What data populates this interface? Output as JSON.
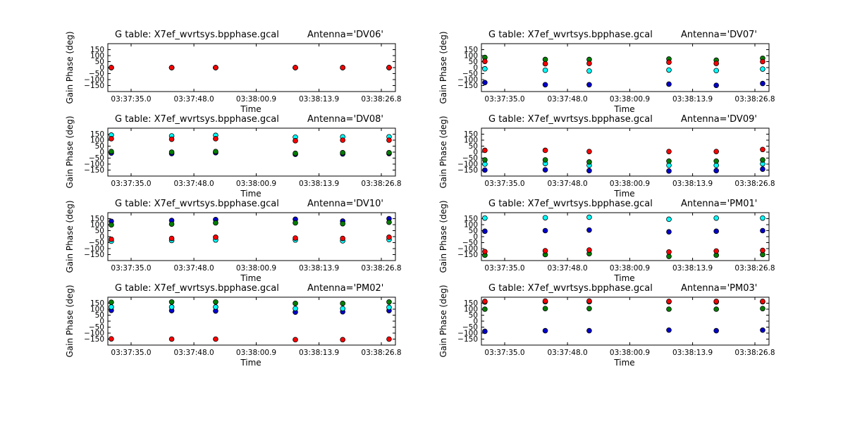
{
  "chart_data": [
    {
      "type": "scatter",
      "title": "G table: X7ef_wvrtsys.bpphase.gcal",
      "antenna": "Antenna='DV06'",
      "xlabel": "Time",
      "ylabel": "Gain Phase (deg)",
      "ylim": [
        -200,
        200
      ],
      "yticks": [
        -150,
        -100,
        -50,
        0,
        50,
        100,
        150
      ],
      "xticks": [
        "03:37:35.0",
        "03:37:48.0",
        "03:38:00.9",
        "03:38:13.9",
        "03:38:26.8"
      ],
      "x": [
        "03:37:30.9",
        "03:37:43.4",
        "03:37:52.5",
        "03:38:09.0",
        "03:38:18.8",
        "03:38:28.4"
      ],
      "series": [
        {
          "color": "#0000cc",
          "values": [
            0,
            0,
            0,
            0,
            0,
            0
          ]
        },
        {
          "color": "#00ffff",
          "values": [
            0,
            0,
            0,
            0,
            0,
            0
          ]
        },
        {
          "color": "#007f00",
          "values": [
            0,
            0,
            0,
            0,
            0,
            0
          ]
        },
        {
          "color": "#ff0000",
          "values": [
            0,
            0,
            0,
            0,
            0,
            0
          ]
        }
      ]
    },
    {
      "type": "scatter",
      "title": "G table: X7ef_wvrtsys.bpphase.gcal",
      "antenna": "Antenna='DV07'",
      "xlabel": "Time",
      "ylabel": "Gain Phase (deg)",
      "ylim": [
        -200,
        200
      ],
      "yticks": [
        -150,
        -100,
        -50,
        0,
        50,
        100,
        150
      ],
      "xticks": [
        "03:37:35.0",
        "03:37:48.0",
        "03:38:00.9",
        "03:38:13.9",
        "03:38:26.8"
      ],
      "x": [
        "03:37:30.9",
        "03:37:43.4",
        "03:37:52.5",
        "03:38:09.0",
        "03:38:18.8",
        "03:38:28.4"
      ],
      "series": [
        {
          "color": "#0000cc",
          "values": [
            -125,
            -143,
            -143,
            -138,
            -148,
            -133
          ]
        },
        {
          "color": "#00ffff",
          "values": [
            -10,
            -22,
            -28,
            -20,
            -25,
            -12
          ]
        },
        {
          "color": "#007f00",
          "values": [
            85,
            68,
            68,
            72,
            62,
            78
          ]
        },
        {
          "color": "#ff0000",
          "values": [
            52,
            32,
            35,
            45,
            35,
            50
          ]
        }
      ]
    },
    {
      "type": "scatter",
      "title": "G table: X7ef_wvrtsys.bpphase.gcal",
      "antenna": "Antenna='DV08'",
      "xlabel": "Time",
      "ylabel": "Gain Phase (deg)",
      "ylim": [
        -200,
        200
      ],
      "yticks": [
        -150,
        -100,
        -50,
        0,
        50,
        100,
        150
      ],
      "xticks": [
        "03:37:35.0",
        "03:37:48.0",
        "03:38:00.9",
        "03:38:13.9",
        "03:38:26.8"
      ],
      "x": [
        "03:37:30.9",
        "03:37:43.4",
        "03:37:52.5",
        "03:38:09.0",
        "03:38:18.8",
        "03:38:28.4"
      ],
      "series": [
        {
          "color": "#0000cc",
          "values": [
            -8,
            -12,
            -5,
            -18,
            -15,
            -12
          ]
        },
        {
          "color": "#00ffff",
          "values": [
            142,
            135,
            140,
            125,
            128,
            128
          ]
        },
        {
          "color": "#007f00",
          "values": [
            5,
            0,
            5,
            -10,
            -5,
            -5
          ]
        },
        {
          "color": "#ff0000",
          "values": [
            112,
            108,
            112,
            95,
            100,
            100
          ]
        }
      ]
    },
    {
      "type": "scatter",
      "title": "G table: X7ef_wvrtsys.bpphase.gcal",
      "antenna": "Antenna='DV09'",
      "xlabel": "Time",
      "ylabel": "Gain Phase (deg)",
      "ylim": [
        -200,
        200
      ],
      "yticks": [
        -150,
        -100,
        -50,
        0,
        50,
        100,
        150
      ],
      "xticks": [
        "03:37:35.0",
        "03:37:48.0",
        "03:38:00.9",
        "03:38:13.9",
        "03:38:26.8"
      ],
      "x": [
        "03:37:30.9",
        "03:37:43.4",
        "03:37:52.5",
        "03:38:09.0",
        "03:38:18.8",
        "03:38:28.4"
      ],
      "series": [
        {
          "color": "#0000cc",
          "values": [
            -150,
            -148,
            -155,
            -158,
            -155,
            -142
          ]
        },
        {
          "color": "#00ffff",
          "values": [
            -100,
            -95,
            -110,
            -110,
            -110,
            -98
          ]
        },
        {
          "color": "#007f00",
          "values": [
            -65,
            -65,
            -82,
            -75,
            -75,
            -65
          ]
        },
        {
          "color": "#ff0000",
          "values": [
            15,
            15,
            5,
            5,
            5,
            22
          ]
        }
      ]
    },
    {
      "type": "scatter",
      "title": "G table: X7ef_wvrtsys.bpphase.gcal",
      "antenna": "Antenna='DV10'",
      "xlabel": "Time",
      "ylabel": "Gain Phase (deg)",
      "ylim": [
        -200,
        200
      ],
      "yticks": [
        -150,
        -100,
        -50,
        0,
        50,
        100,
        150
      ],
      "xticks": [
        "03:37:35.0",
        "03:37:48.0",
        "03:38:00.9",
        "03:38:13.9",
        "03:38:26.8"
      ],
      "x": [
        "03:37:30.9",
        "03:37:43.4",
        "03:37:52.5",
        "03:38:09.0",
        "03:38:18.8",
        "03:38:28.4"
      ],
      "series": [
        {
          "color": "#0000cc",
          "values": [
            128,
            135,
            142,
            145,
            130,
            150
          ]
        },
        {
          "color": "#00ffff",
          "values": [
            -38,
            -32,
            -28,
            -28,
            -35,
            -25
          ]
        },
        {
          "color": "#007f00",
          "values": [
            98,
            105,
            115,
            115,
            108,
            120
          ]
        },
        {
          "color": "#ff0000",
          "values": [
            -22,
            -15,
            -5,
            -12,
            -15,
            -5
          ]
        }
      ]
    },
    {
      "type": "scatter",
      "title": "G table: X7ef_wvrtsys.bpphase.gcal",
      "antenna": "Antenna='PM01'",
      "xlabel": "Time",
      "ylabel": "Gain Phase (deg)",
      "ylim": [
        -200,
        200
      ],
      "yticks": [
        -150,
        -100,
        -50,
        0,
        50,
        100,
        150
      ],
      "xticks": [
        "03:37:35.0",
        "03:37:48.0",
        "03:38:00.9",
        "03:38:13.9",
        "03:38:26.8"
      ],
      "x": [
        "03:37:30.9",
        "03:37:43.4",
        "03:37:52.5",
        "03:38:09.0",
        "03:38:18.8",
        "03:38:28.4"
      ],
      "series": [
        {
          "color": "#0000cc",
          "values": [
            45,
            50,
            55,
            40,
            45,
            50
          ]
        },
        {
          "color": "#00ffff",
          "values": [
            155,
            158,
            162,
            145,
            155,
            155
          ]
        },
        {
          "color": "#007f00",
          "values": [
            -155,
            -150,
            -142,
            -165,
            -155,
            -150
          ]
        },
        {
          "color": "#ff0000",
          "values": [
            -125,
            -118,
            -112,
            -128,
            -120,
            -115
          ]
        }
      ]
    },
    {
      "type": "scatter",
      "title": "G table: X7ef_wvrtsys.bpphase.gcal",
      "antenna": "Antenna='PM02'",
      "xlabel": "Time",
      "ylabel": "Gain Phase (deg)",
      "ylim": [
        -200,
        200
      ],
      "yticks": [
        -150,
        -100,
        -50,
        0,
        50,
        100,
        150
      ],
      "xticks": [
        "03:37:35.0",
        "03:37:48.0",
        "03:38:00.9",
        "03:38:13.9",
        "03:38:26.8"
      ],
      "x": [
        "03:37:30.9",
        "03:37:43.4",
        "03:37:52.5",
        "03:38:09.0",
        "03:38:18.8",
        "03:38:28.4"
      ],
      "series": [
        {
          "color": "#0000cc",
          "values": [
            90,
            88,
            85,
            75,
            78,
            88
          ]
        },
        {
          "color": "#00ffff",
          "values": [
            118,
            118,
            118,
            105,
            105,
            115
          ]
        },
        {
          "color": "#007f00",
          "values": [
            158,
            160,
            160,
            148,
            148,
            160
          ]
        },
        {
          "color": "#ff0000",
          "values": [
            -148,
            -150,
            -150,
            -155,
            -155,
            -150
          ]
        }
      ]
    },
    {
      "type": "scatter",
      "title": "G table: X7ef_wvrtsys.bpphase.gcal",
      "antenna": "Antenna='PM03'",
      "xlabel": "Time",
      "ylabel": "Gain Phase (deg)",
      "ylim": [
        -200,
        200
      ],
      "yticks": [
        -150,
        -100,
        -50,
        0,
        50,
        100,
        150
      ],
      "xticks": [
        "03:37:35.0",
        "03:37:48.0",
        "03:38:00.9",
        "03:38:13.9",
        "03:38:26.8"
      ],
      "x": [
        "03:37:30.9",
        "03:37:43.4",
        "03:37:52.5",
        "03:38:09.0",
        "03:38:18.8",
        "03:38:28.4"
      ],
      "series": [
        {
          "color": "#0000cc",
          "values": [
            -85,
            -80,
            -80,
            -75,
            -80,
            -75
          ]
        },
        {
          "color": "#00ffff",
          "values": [
            160,
            162,
            162,
            162,
            160,
            162
          ]
        },
        {
          "color": "#007f00",
          "values": [
            100,
            105,
            105,
            100,
            100,
            105
          ]
        },
        {
          "color": "#ff0000",
          "values": [
            165,
            168,
            168,
            165,
            165,
            165
          ]
        }
      ]
    }
  ]
}
